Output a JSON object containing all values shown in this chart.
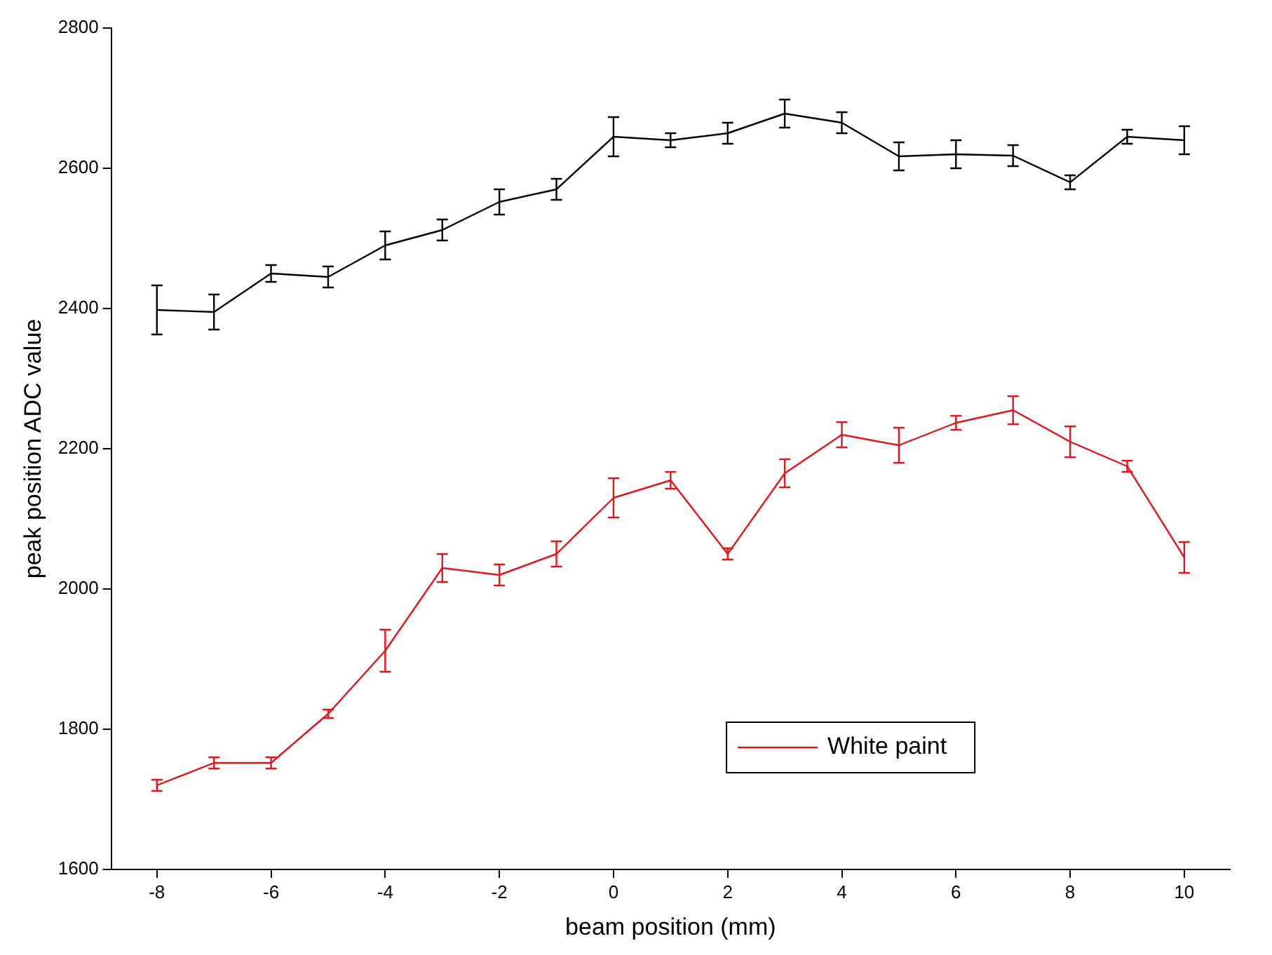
{
  "chart_data": {
    "type": "line",
    "xlabel": "beam position (mm)",
    "ylabel": "peak position ADC value",
    "x": [
      -8,
      -7,
      -6,
      -5,
      -4,
      -3,
      -2,
      -1,
      0,
      1,
      2,
      3,
      4,
      5,
      6,
      7,
      8,
      9,
      10
    ],
    "series": [
      {
        "color": "#000000",
        "values": [
          2398,
          2395,
          2450,
          2445,
          2490,
          2512,
          2552,
          2570,
          2645,
          2640,
          2650,
          2678,
          2665,
          2617,
          2620,
          2618,
          2580,
          2645,
          2640
        ],
        "errors": [
          35,
          25,
          12,
          15,
          20,
          15,
          18,
          15,
          28,
          10,
          15,
          20,
          15,
          20,
          20,
          15,
          10,
          10,
          20
        ]
      },
      {
        "name": "White paint",
        "color": "#e8141c",
        "values": [
          1720,
          1752,
          1752,
          1822,
          1912,
          2030,
          2020,
          2050,
          2130,
          2155,
          2050,
          2165,
          2220,
          2205,
          2237,
          2255,
          2210,
          2175,
          2045
        ],
        "errors": [
          8,
          8,
          8,
          6,
          30,
          20,
          15,
          18,
          28,
          12,
          8,
          20,
          18,
          25,
          10,
          20,
          22,
          8,
          22
        ]
      }
    ],
    "xlim": [
      -8.8,
      10.8
    ],
    "xticks": [
      -8,
      -6,
      -4,
      -2,
      0,
      2,
      4,
      6,
      8,
      10
    ],
    "ylim": [
      1600,
      2800
    ],
    "yticks": [
      1600,
      1800,
      2000,
      2200,
      2400,
      2600,
      2800
    ],
    "grid": false,
    "legend": "bottom right",
    "marker": "none",
    "line_style": "solid"
  }
}
